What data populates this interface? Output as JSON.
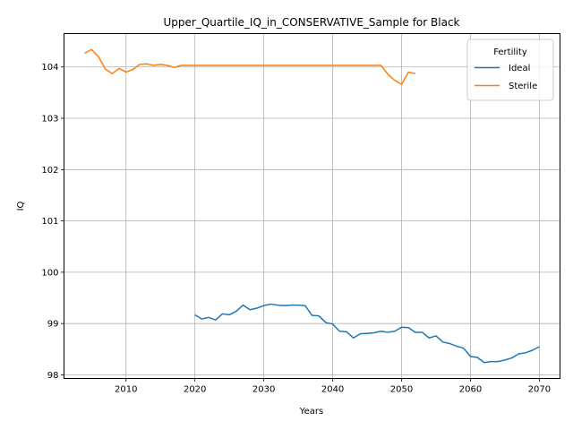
{
  "chart_data": {
    "type": "line",
    "title": "Upper_Quartile_IQ_in_CONSERVATIVE_Sample for Black",
    "xlabel": "Years",
    "ylabel": "IQ",
    "xlim": [
      2001,
      2073
    ],
    "ylim": [
      97.93,
      104.65
    ],
    "xticks": [
      2010,
      2020,
      2030,
      2040,
      2050,
      2060,
      2070
    ],
    "yticks": [
      98,
      99,
      100,
      101,
      102,
      103,
      104
    ],
    "grid": true,
    "legend": {
      "title": "Fertility",
      "placement": "top-right"
    },
    "series": [
      {
        "name": "Ideal",
        "color": "#1f77b4",
        "x": [
          2020,
          2021,
          2022,
          2023,
          2024,
          2025,
          2026,
          2027,
          2028,
          2029,
          2030,
          2031,
          2032,
          2033,
          2034,
          2035,
          2036,
          2037,
          2038,
          2039,
          2040,
          2041,
          2042,
          2043,
          2044,
          2045,
          2046,
          2047,
          2048,
          2049,
          2050,
          2051,
          2052,
          2053,
          2054,
          2055,
          2056,
          2057,
          2058,
          2059,
          2060,
          2061,
          2062,
          2063,
          2064,
          2065,
          2066,
          2067,
          2068,
          2069,
          2070
        ],
        "y": [
          99.17,
          99.09,
          99.12,
          99.07,
          99.19,
          99.17,
          99.24,
          99.36,
          99.27,
          99.3,
          99.35,
          99.38,
          99.36,
          99.35,
          99.36,
          99.36,
          99.35,
          99.16,
          99.15,
          99.02,
          98.99,
          98.85,
          98.84,
          98.72,
          98.8,
          98.81,
          98.82,
          98.85,
          98.83,
          98.85,
          98.93,
          98.92,
          98.83,
          98.83,
          98.72,
          98.76,
          98.64,
          98.61,
          98.56,
          98.52,
          98.36,
          98.34,
          98.24,
          98.26,
          98.26,
          98.29,
          98.33,
          98.41,
          98.43,
          98.48,
          98.55
        ]
      },
      {
        "name": "Sterile",
        "color": "#ff7f0e",
        "x": [
          2004,
          2005,
          2006,
          2007,
          2008,
          2009,
          2010,
          2011,
          2012,
          2013,
          2014,
          2015,
          2016,
          2017,
          2018,
          2019,
          2020,
          2021,
          2022,
          2023,
          2024,
          2025,
          2026,
          2027,
          2028,
          2029,
          2030,
          2031,
          2032,
          2033,
          2034,
          2035,
          2036,
          2037,
          2038,
          2039,
          2040,
          2041,
          2042,
          2043,
          2044,
          2045,
          2046,
          2047,
          2048,
          2049,
          2050,
          2051,
          2052
        ],
        "y": [
          104.27,
          104.34,
          104.2,
          103.96,
          103.87,
          103.97,
          103.9,
          103.95,
          104.05,
          104.06,
          104.03,
          104.05,
          104.03,
          103.99,
          104.03,
          104.03,
          104.03,
          104.03,
          104.03,
          104.03,
          104.03,
          104.03,
          104.03,
          104.03,
          104.03,
          104.03,
          104.03,
          104.03,
          104.03,
          104.03,
          104.03,
          104.03,
          104.03,
          104.03,
          104.03,
          104.03,
          104.03,
          104.03,
          104.03,
          104.03,
          104.03,
          104.03,
          104.03,
          104.03,
          103.86,
          103.74,
          103.66,
          103.9,
          103.87
        ]
      }
    ]
  }
}
